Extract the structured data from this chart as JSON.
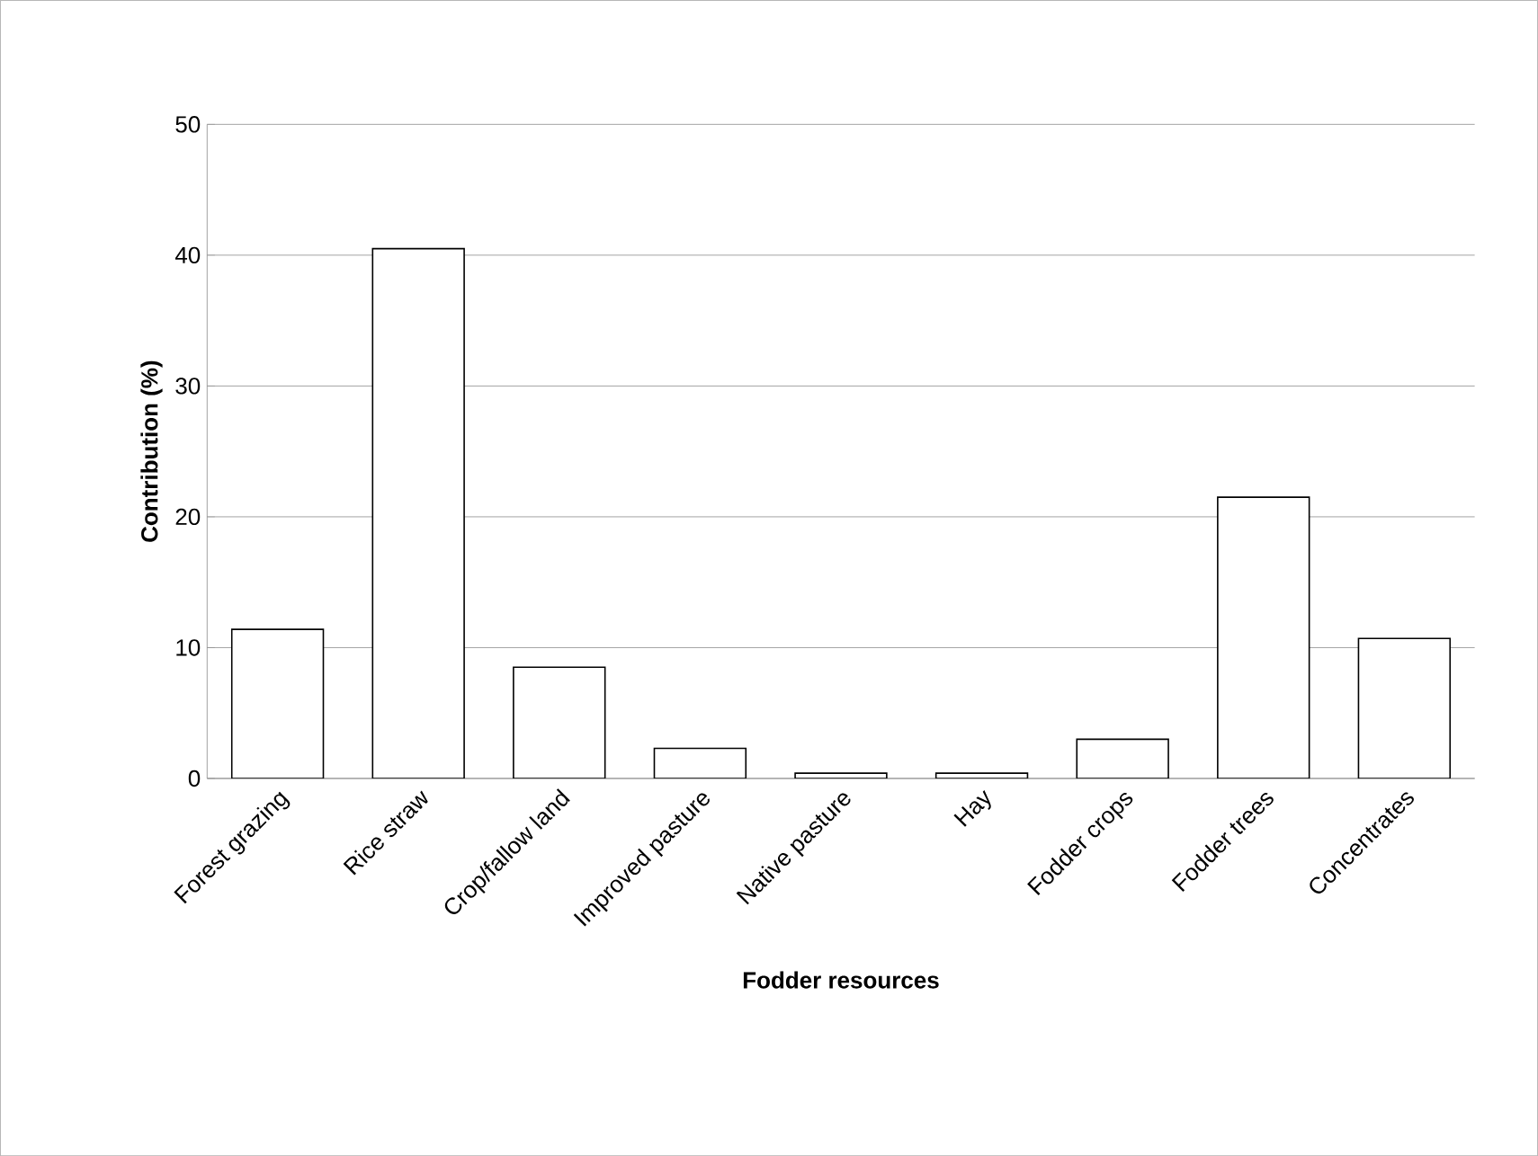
{
  "chart_data": {
    "type": "bar",
    "xlabel": "Fodder resources",
    "ylabel": "Contribution (%)",
    "categories": [
      "Forest grazing",
      "Rice straw",
      "Crop/fallow land",
      "Improved pasture",
      "Native pasture",
      "Hay",
      "Fodder crops",
      "Fodder trees",
      "Concentrates"
    ],
    "values": [
      11.4,
      40.5,
      8.5,
      2.3,
      0.4,
      0.4,
      3.0,
      21.5,
      10.7
    ],
    "color": "#ffffff",
    "ylim": [
      0,
      50
    ],
    "yticks": [
      0,
      10,
      20,
      30,
      40,
      50
    ],
    "grid": "y"
  }
}
